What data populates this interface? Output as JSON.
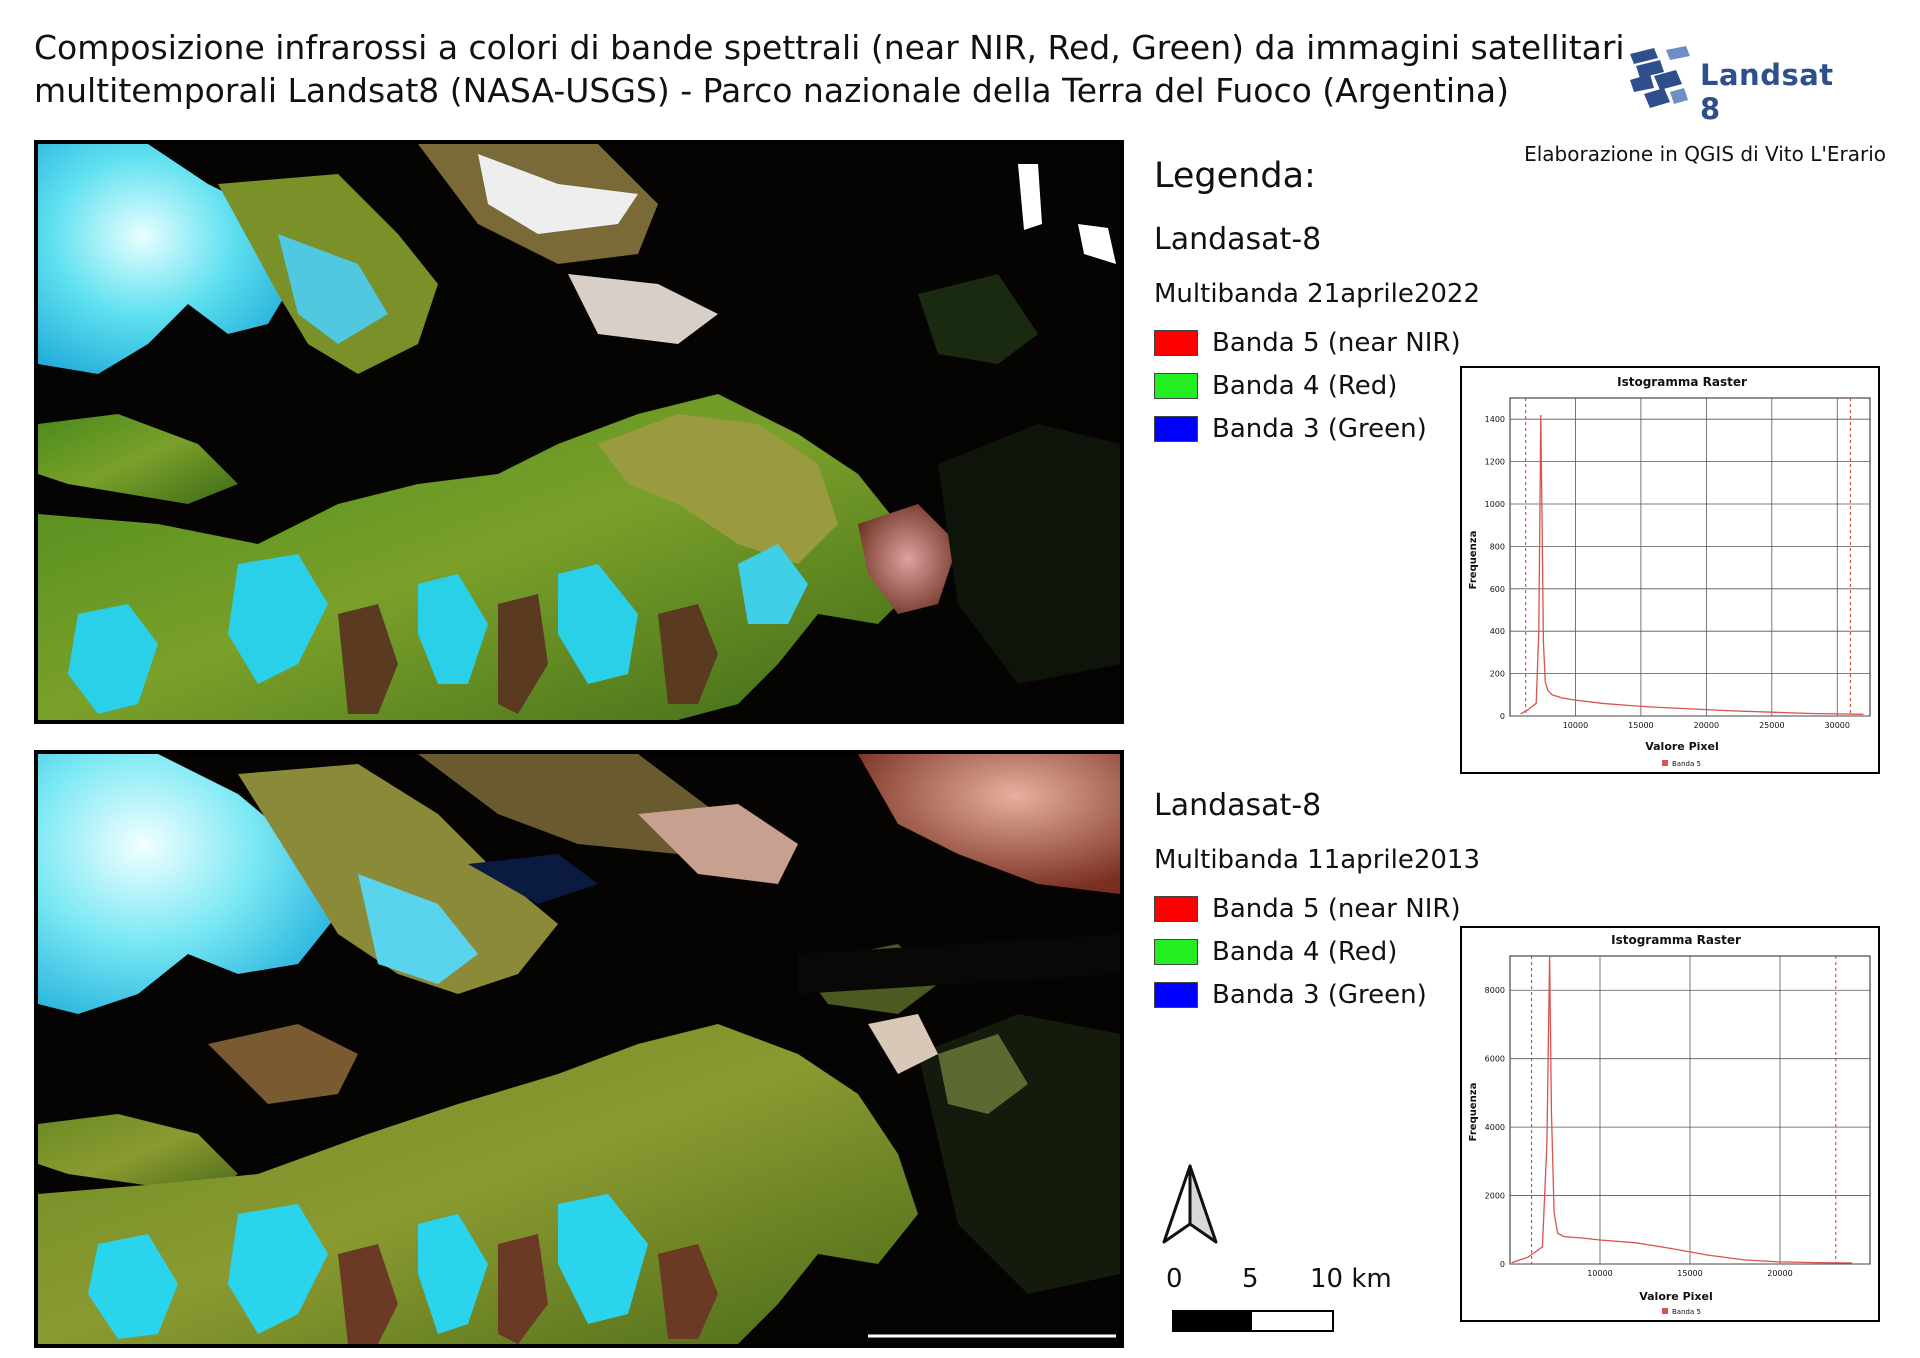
{
  "title_line1": "Composizione infrarossi a colori di bande spettrali (near NIR, Red, Green) da immagini satellitari",
  "title_line2": "multitemporali Landsat8 (NASA-USGS) - Parco nazionale della Terra del Fuoco (Argentina)",
  "logo": {
    "text": "Landsat 8",
    "icon": "landsat-satellite-icon",
    "color": "#2f4f8c"
  },
  "credit": "Elaborazione in QGIS di Vito L'Erario",
  "legend": {
    "heading": "Legenda:",
    "blocks": [
      {
        "satellite": "Landasat-8",
        "multiband": "Multibanda 21aprile2022",
        "bands": [
          {
            "label": "Banda 5 (near NIR)",
            "color": "#ff0000"
          },
          {
            "label": "Banda 4 (Red)",
            "color": "#22ee22"
          },
          {
            "label": "Banda 3 (Green)",
            "color": "#0000ff"
          }
        ]
      },
      {
        "satellite": "Landasat-8",
        "multiband": "Multibanda 11aprile2013",
        "bands": [
          {
            "label": "Banda 5 (near NIR)",
            "color": "#ff0000"
          },
          {
            "label": "Banda 4 (Red)",
            "color": "#22ee22"
          },
          {
            "label": "Banda 3 (Green)",
            "color": "#0000ff"
          }
        ]
      }
    ]
  },
  "histograms": [
    {
      "title": "Istogramma Raster",
      "xlabel": "Valore Pixel",
      "ylabel": "Frequenza",
      "legend": "Banda 5",
      "xticks": [
        "10000",
        "15000",
        "20000",
        "25000",
        "30000"
      ],
      "yticks": [
        "0",
        "200",
        "400",
        "600",
        "800",
        "1000",
        "1200",
        "1400"
      ],
      "series_color": "#d9534f"
    },
    {
      "title": "Istogramma Raster",
      "xlabel": "Valore Pixel",
      "ylabel": "Frequenza",
      "legend": "Banda 5",
      "xticks": [
        "10000",
        "15000",
        "20000"
      ],
      "yticks": [
        "0",
        "2000",
        "4000",
        "6000",
        "8000"
      ],
      "series_color": "#d9534f"
    }
  ],
  "chart_data": [
    {
      "type": "line",
      "title": "Istogramma Raster",
      "xlabel": "Valore Pixel",
      "ylabel": "Frequenza",
      "xlim": [
        5000,
        32500
      ],
      "ylim": [
        0,
        1500
      ],
      "series": [
        {
          "name": "Banda 5",
          "x": [
            5800,
            6400,
            7000,
            7200,
            7350,
            7450,
            7550,
            7700,
            7900,
            8200,
            9000,
            10000,
            12000,
            14000,
            16000,
            18000,
            20000,
            22000,
            25000,
            28000,
            30000,
            32000
          ],
          "y": [
            10,
            30,
            60,
            400,
            1420,
            900,
            350,
            160,
            120,
            100,
            85,
            75,
            60,
            50,
            42,
            36,
            30,
            24,
            18,
            12,
            10,
            8
          ]
        }
      ],
      "cutoffs": [
        6200,
        31000
      ]
    },
    {
      "type": "line",
      "title": "Istogramma Raster",
      "xlabel": "Valore Pixel",
      "ylabel": "Frequenza",
      "xlim": [
        5000,
        25000
      ],
      "ylim": [
        0,
        9000
      ],
      "series": [
        {
          "name": "Banda 5",
          "x": [
            5100,
            6000,
            6800,
            7050,
            7200,
            7300,
            7450,
            7650,
            8000,
            9000,
            10000,
            12000,
            14000,
            16000,
            18000,
            20000,
            22000,
            24000
          ],
          "y": [
            40,
            200,
            500,
            3500,
            9000,
            4500,
            1500,
            900,
            800,
            760,
            700,
            620,
            450,
            260,
            120,
            60,
            40,
            30
          ]
        }
      ],
      "cutoffs": [
        6200,
        23100
      ]
    }
  ],
  "scalebar": {
    "labels": [
      "0",
      "5",
      "10 km"
    ]
  },
  "north_arrow": "north-arrow-icon"
}
